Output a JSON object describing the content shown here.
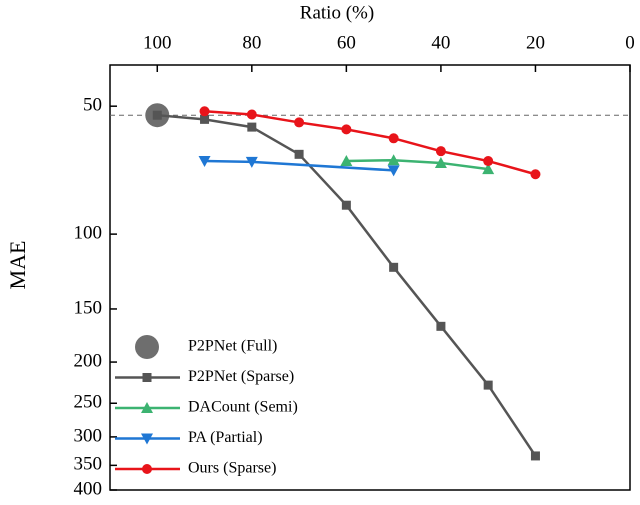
{
  "chart_data": {
    "type": "line",
    "x_label": "Ratio (%)",
    "y_label": "MAE",
    "xlim": [
      110,
      0
    ],
    "xticks": [
      100,
      80,
      60,
      40,
      20,
      0
    ],
    "ylim": [
      40,
      400
    ],
    "y_scale": "log",
    "yticks": [
      50,
      100,
      150,
      200,
      250,
      300,
      350,
      400
    ],
    "reference_line": {
      "value": 52.5,
      "style": "dashed",
      "color": "#666666"
    },
    "legend": "lower left",
    "series": [
      {
        "name": "P2PNet  (Full)",
        "color": "#6e6e6e",
        "marker": "big-circle",
        "x": [
          100
        ],
        "values": [
          52.5
        ]
      },
      {
        "name": "P2PNet  (Sparse)",
        "color": "#555555",
        "marker": "square",
        "x": [
          100,
          90,
          80,
          70,
          60,
          50,
          40,
          30,
          20
        ],
        "values": [
          52.5,
          53.7,
          56.0,
          64.9,
          85.5,
          119.7,
          164.8,
          226.6,
          332.6
        ]
      },
      {
        "name": "DACount  (Semi)",
        "color": "#3cb371",
        "marker": "triangle-up",
        "x": [
          60,
          50,
          40,
          30
        ],
        "values": [
          67.3,
          67.0,
          68.0,
          70.3
        ]
      },
      {
        "name": "PA  (Partial)",
        "color": "#1f77d4",
        "marker": "triangle-down",
        "x": [
          90,
          80,
          50
        ],
        "values": [
          67.3,
          67.6,
          70.8
        ]
      },
      {
        "name": "Ours  (Sparse)",
        "color": "#e8141a",
        "marker": "circle",
        "x": [
          90,
          80,
          70,
          60,
          50,
          40,
          30,
          20
        ],
        "values": [
          51.4,
          52.3,
          54.6,
          56.7,
          59.5,
          63.8,
          67.3,
          72.3
        ]
      }
    ]
  }
}
